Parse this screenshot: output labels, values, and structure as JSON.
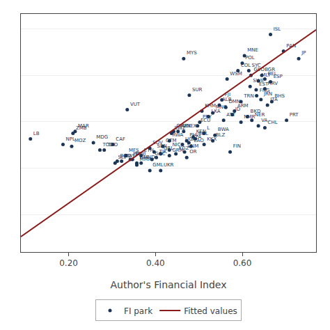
{
  "chart_data": {
    "type": "scatter",
    "xlabel": "Author's Financial Index",
    "xlim": [
      0.09,
      0.77
    ],
    "ylim": [
      -0.2,
      1.08
    ],
    "xticks": [
      {
        "value": 0.2,
        "label": "0.20"
      },
      {
        "value": 0.4,
        "label": "0.40"
      },
      {
        "value": 0.6,
        "label": "0.60"
      }
    ],
    "yticks": [
      0,
      0.25,
      0.5,
      0.75,
      1.0
    ],
    "tick_labels": "x",
    "grid": true,
    "legend": "bottom",
    "series": [
      {
        "name": "FI park",
        "type": "scatter",
        "marker": "circle",
        "color": "#1C3557",
        "labels": [
          "ISL",
          "PAN",
          "JP",
          "MYS",
          "MNE",
          "POL",
          "COL",
          "SYC",
          "GEO",
          "BGR",
          "WSM",
          "MLT",
          "BEL",
          "ESP",
          "SWE",
          "EST",
          "HRV",
          "SUR",
          "FNG",
          "JRN",
          "BHS",
          "ITA",
          "FJI",
          "TRN",
          "ALB",
          "DMN",
          "VUT",
          "ARM",
          "KHM",
          "MNG",
          "ID",
          "LKA",
          "BKD",
          "PRT",
          "PRY",
          "ATT",
          "NER",
          "NMR",
          "ECU",
          "VA",
          "CHL",
          "CMR",
          "SWZ",
          "NEX",
          "REX",
          "MAR",
          "ZMB",
          "KEN",
          "L",
          "BWA",
          "BOL",
          "RWA",
          "BLZ",
          "PHL",
          "TZA",
          "UGA",
          "LAO",
          "MDG",
          "CAF",
          "KKX",
          "GTM",
          "SDV",
          "NIC",
          "TOD",
          "TCD",
          "SEN",
          "VNM",
          "GRL",
          "KGZ",
          "FIN",
          "GRM",
          "MFS",
          "ETH",
          "GCC",
          "TJK",
          "OR",
          "LB",
          "NPL",
          "MOZ",
          "PAK",
          "MWI",
          "BGD",
          "ZWE",
          "BFA",
          "MMR",
          "SLV",
          "HND",
          "GML",
          "UKR"
        ],
        "x": [
          0.665,
          0.695,
          0.73,
          0.465,
          0.605,
          0.6,
          0.59,
          0.615,
          0.62,
          0.645,
          0.565,
          0.637,
          0.652,
          0.665,
          0.618,
          0.632,
          0.652,
          0.478,
          0.633,
          0.643,
          0.668,
          0.658,
          0.553,
          0.597,
          0.547,
          0.562,
          0.335,
          0.582,
          0.507,
          0.532,
          0.577,
          0.522,
          0.612,
          0.702,
          0.502,
          0.557,
          0.622,
          0.597,
          0.497,
          0.637,
          0.652,
          0.442,
          0.437,
          0.465,
          0.452,
          0.215,
          0.21,
          0.487,
          0.512,
          0.537,
          0.492,
          0.432,
          0.532,
          0.472,
          0.477,
          0.462,
          0.482,
          0.257,
          0.302,
          0.512,
          0.417,
          0.387,
          0.432,
          0.282,
          0.272,
          0.397,
          0.467,
          0.412,
          0.447,
          0.572,
          0.432,
          0.332,
          0.367,
          0.392,
          0.402,
          0.472,
          0.112,
          0.187,
          0.207,
          0.342,
          0.347,
          0.312,
          0.322,
          0.357,
          0.357,
          0.307,
          0.367,
          0.387,
          0.412
        ],
        "values": [
          0.97,
          0.88,
          0.84,
          0.84,
          0.855,
          0.815,
          0.775,
          0.775,
          0.75,
          0.75,
          0.73,
          0.72,
          0.73,
          0.715,
          0.69,
          0.672,
          0.678,
          0.643,
          0.64,
          0.62,
          0.608,
          0.59,
          0.618,
          0.608,
          0.59,
          0.578,
          0.565,
          0.558,
          0.558,
          0.548,
          0.538,
          0.528,
          0.528,
          0.508,
          0.498,
          0.508,
          0.508,
          0.498,
          0.478,
          0.478,
          0.468,
          0.448,
          0.438,
          0.448,
          0.448,
          0.448,
          0.438,
          0.418,
          0.438,
          0.428,
          0.408,
          0.398,
          0.398,
          0.398,
          0.388,
          0.378,
          0.368,
          0.388,
          0.378,
          0.378,
          0.368,
          0.358,
          0.348,
          0.348,
          0.348,
          0.338,
          0.338,
          0.328,
          0.328,
          0.338,
          0.318,
          0.318,
          0.318,
          0.298,
          0.308,
          0.308,
          0.408,
          0.378,
          0.368,
          0.298,
          0.298,
          0.288,
          0.288,
          0.278,
          0.268,
          0.278,
          0.278,
          0.238,
          0.238
        ]
      },
      {
        "name": "Fitted values",
        "type": "line",
        "line_style": "solid",
        "color": "#8B1A1A",
        "x": [
          0.09,
          0.77
        ],
        "values": [
          -0.11776,
          0.99472
        ]
      }
    ]
  }
}
